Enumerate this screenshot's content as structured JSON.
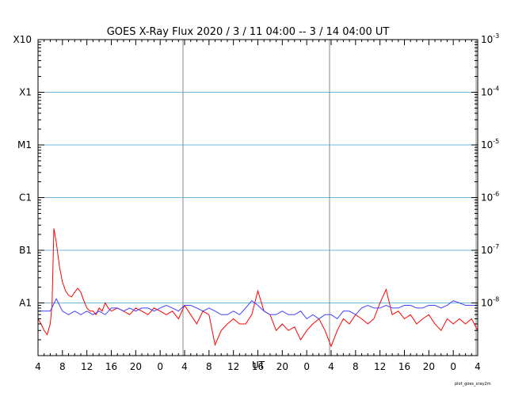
{
  "chart_data": {
    "type": "line",
    "title": "GOES X-Ray Flux   2020  /  3  /  11    04:00 --  3  /  14    04:00    UT",
    "xlabel": "UT",
    "footer": "plot_goes_xray2m",
    "x_ticks": [
      "4",
      "8",
      "12",
      "16",
      "20",
      "0",
      "4",
      "8",
      "12",
      "16",
      "20",
      "0",
      "4",
      "8",
      "12",
      "16",
      "20",
      "0",
      "4"
    ],
    "x_tick_hours": [
      0,
      4,
      8,
      12,
      16,
      20,
      24,
      28,
      32,
      36,
      40,
      44,
      48,
      52,
      56,
      60,
      64,
      68,
      72
    ],
    "day_boundaries_hours": [
      24,
      48,
      72
    ],
    "xlim_hours": [
      0,
      72
    ],
    "y_scale": "log",
    "ylim": [
      1e-09,
      0.001
    ],
    "y_class_labels": [
      {
        "label": "X10",
        "value": 0.001
      },
      {
        "label": "X1",
        "value": 0.0001
      },
      {
        "label": "M1",
        "value": 1e-05
      },
      {
        "label": "C1",
        "value": 1e-06
      },
      {
        "label": "B1",
        "value": 1e-07
      },
      {
        "label": "A1",
        "value": 1e-08
      }
    ],
    "y_right_labels": [
      {
        "base": "10",
        "exp": "-3",
        "value": 0.001
      },
      {
        "base": "10",
        "exp": "-4",
        "value": 0.0001
      },
      {
        "base": "10",
        "exp": "-5",
        "value": 1e-05
      },
      {
        "base": "10",
        "exp": "-6",
        "value": 1e-06
      },
      {
        "base": "10",
        "exp": "-7",
        "value": 1e-07
      },
      {
        "base": "10",
        "exp": "-8",
        "value": 1e-08
      }
    ],
    "grid_lines": [
      1e-08,
      1e-07,
      1e-06,
      1e-05,
      0.0001
    ],
    "series": [
      {
        "color": "#ff0000",
        "x": [
          0,
          0.5,
          1.0,
          1.5,
          2.0,
          2.3,
          2.6,
          3.0,
          3.5,
          4.0,
          4.5,
          5.0,
          5.5,
          6.0,
          6.5,
          7.0,
          7.5,
          8.0,
          8.5,
          9.0,
          9.5,
          10.0,
          10.5,
          11.0,
          11.5,
          12.0,
          13.0,
          14.0,
          15.0,
          16.0,
          17.0,
          18.0,
          19.0,
          20.0,
          21.0,
          22.0,
          23.0,
          24.0,
          25.0,
          26.0,
          27.0,
          28.0,
          29.0,
          30.0,
          31.0,
          32.0,
          33.0,
          34.0,
          35.0,
          36.0,
          37.0,
          38.0,
          39.0,
          40.0,
          41.0,
          42.0,
          43.0,
          44.0,
          45.0,
          46.0,
          47.0,
          48.0,
          49.0,
          50.0,
          51.0,
          52.0,
          53.0,
          54.0,
          55.0,
          56.0,
          57.0,
          58.0,
          59.0,
          60.0,
          61.0,
          62.0,
          63.0,
          64.0,
          65.0,
          66.0,
          67.0,
          68.0,
          69.0,
          70.0,
          71.0,
          72.0
        ],
        "y": [
          5e-09,
          4e-09,
          3e-09,
          2.5e-09,
          4e-09,
          9e-09,
          2.6e-07,
          1.4e-07,
          5e-08,
          2.5e-08,
          1.7e-08,
          1.4e-08,
          1.3e-08,
          1.6e-08,
          1.9e-08,
          1.6e-08,
          1.1e-08,
          8e-09,
          7e-09,
          7e-09,
          6e-09,
          8e-09,
          7e-09,
          1e-08,
          8e-09,
          7e-09,
          8e-09,
          7e-09,
          6e-09,
          8e-09,
          7e-09,
          6e-09,
          8e-09,
          7e-09,
          6e-09,
          7e-09,
          5e-09,
          9e-09,
          6e-09,
          4e-09,
          7e-09,
          6e-09,
          1.6e-09,
          3e-09,
          4e-09,
          5e-09,
          4e-09,
          4e-09,
          6e-09,
          1.7e-08,
          7e-09,
          6e-09,
          3e-09,
          4e-09,
          3e-09,
          3.5e-09,
          2e-09,
          3e-09,
          4e-09,
          5e-09,
          3e-09,
          1.5e-09,
          3e-09,
          5e-09,
          4e-09,
          6e-09,
          5e-09,
          4e-09,
          5e-09,
          1e-08,
          1.8e-08,
          6e-09,
          7e-09,
          5e-09,
          6e-09,
          4e-09,
          5e-09,
          6e-09,
          4e-09,
          3e-09,
          5e-09,
          4e-09,
          5e-09,
          4e-09,
          5e-09,
          3e-09
        ]
      },
      {
        "color": "#4040ff",
        "x": [
          0,
          0.5,
          1.0,
          1.5,
          2.0,
          3.0,
          4.0,
          5.0,
          6.0,
          7.0,
          8.0,
          9.0,
          10.0,
          11.0,
          12.0,
          13.0,
          14.0,
          15.0,
          16.0,
          17.0,
          18.0,
          19.0,
          20.0,
          21.0,
          22.0,
          23.0,
          24.0,
          25.0,
          26.0,
          27.0,
          28.0,
          29.0,
          30.0,
          31.0,
          32.0,
          33.0,
          34.0,
          35.0,
          36.0,
          37.0,
          38.0,
          39.0,
          40.0,
          41.0,
          42.0,
          43.0,
          44.0,
          45.0,
          46.0,
          47.0,
          48.0,
          49.0,
          50.0,
          51.0,
          52.0,
          53.0,
          54.0,
          55.0,
          56.0,
          57.0,
          58.0,
          59.0,
          60.0,
          61.0,
          62.0,
          63.0,
          64.0,
          65.0,
          66.0,
          67.0,
          68.0,
          69.0,
          70.0,
          71.0,
          72.0
        ],
        "y": [
          7e-09,
          7e-09,
          7e-09,
          7e-09,
          7e-09,
          1.2e-08,
          7e-09,
          6e-09,
          7e-09,
          6e-09,
          7e-09,
          6e-09,
          7e-09,
          6e-09,
          8e-09,
          8e-09,
          7e-09,
          8e-09,
          7e-09,
          8e-09,
          8e-09,
          7e-09,
          8e-09,
          9e-09,
          8e-09,
          7e-09,
          9e-09,
          9e-09,
          8e-09,
          7e-09,
          8e-09,
          7e-09,
          6e-09,
          6e-09,
          7e-09,
          6e-09,
          8e-09,
          1.1e-08,
          9e-09,
          7e-09,
          6e-09,
          6e-09,
          7e-09,
          6e-09,
          6e-09,
          7e-09,
          5e-09,
          6e-09,
          5e-09,
          6e-09,
          6e-09,
          5e-09,
          7e-09,
          7e-09,
          6e-09,
          8e-09,
          9e-09,
          8e-09,
          8e-09,
          9e-09,
          8e-09,
          8e-09,
          9e-09,
          9e-09,
          8e-09,
          8e-09,
          9e-09,
          9e-09,
          8e-09,
          9e-09,
          1.1e-08,
          1e-08,
          9e-09,
          9e-09,
          9e-09
        ]
      }
    ]
  }
}
